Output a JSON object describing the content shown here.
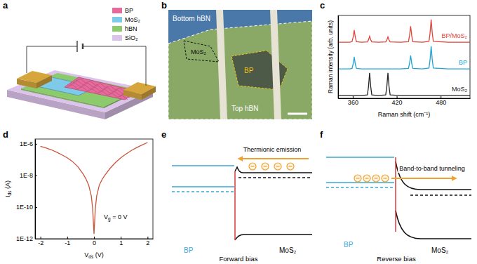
{
  "chart_data": [
    {
      "type": "line",
      "letter": "c",
      "x_label": "Raman shift (cm⁻¹)",
      "y_label": "Raman intensity (arb. units)",
      "x": [
        340,
        356,
        359,
        360.5,
        362,
        363.5,
        365,
        372,
        380,
        381.5,
        383,
        384.5,
        386,
        395,
        405,
        406.5,
        408,
        409.5,
        411,
        425,
        436,
        437.5,
        439,
        440.5,
        442,
        455,
        464,
        465.5,
        467,
        468.5,
        470,
        490,
        520
      ],
      "series": [
        {
          "name": "BP/MoS₂",
          "color": "#e0443a",
          "values": [
            2.1,
            2.1,
            2.12,
            2.28,
            2.55,
            2.28,
            2.12,
            2.1,
            2.11,
            2.19,
            2.32,
            2.19,
            2.11,
            2.1,
            2.11,
            2.18,
            2.3,
            2.18,
            2.11,
            2.1,
            2.12,
            2.34,
            2.7,
            2.34,
            2.12,
            2.1,
            2.13,
            2.44,
            2.95,
            2.44,
            2.13,
            2.1,
            2.1
          ]
        },
        {
          "name": "BP",
          "color": "#1fa3d6",
          "values": [
            1.1,
            1.1,
            1.12,
            1.28,
            1.55,
            1.28,
            1.12,
            1.1,
            1.1,
            1.1,
            1.1,
            1.1,
            1.1,
            1.1,
            1.1,
            1.1,
            1.1,
            1.1,
            1.1,
            1.1,
            1.12,
            1.3,
            1.6,
            1.3,
            1.12,
            1.1,
            1.13,
            1.44,
            1.95,
            1.44,
            1.13,
            1.1,
            1.1
          ]
        },
        {
          "name": "MoS₂",
          "color": "#222222",
          "values": [
            0.1,
            0.1,
            0.1,
            0.1,
            0.1,
            0.1,
            0.1,
            0.1,
            0.13,
            0.44,
            0.95,
            0.44,
            0.13,
            0.1,
            0.13,
            0.44,
            0.95,
            0.44,
            0.13,
            0.1,
            0.1,
            0.1,
            0.1,
            0.1,
            0.1,
            0.1,
            0.1,
            0.1,
            0.1,
            0.1,
            0.1,
            0.1,
            0.1
          ]
        }
      ],
      "xlim": [
        340,
        520
      ],
      "ylim": [
        0,
        3.1
      ],
      "xticks": [
        360,
        420,
        480
      ],
      "tick_labels": "x"
    },
    {
      "type": "line",
      "letter": "d",
      "log": "y",
      "x_label": "Vds (V)",
      "y_label": "Ids (A)",
      "annotation": "Vg = 0 V",
      "x": [
        -2,
        -1.8,
        -1.6,
        -1.4,
        -1.2,
        -1,
        -0.8,
        -0.6,
        -0.4,
        -0.3,
        -0.2,
        -0.1,
        -0.05,
        0,
        0.05,
        0.1,
        0.2,
        0.3,
        0.4,
        0.6,
        0.8,
        1,
        1.2,
        1.4,
        1.6,
        1.8,
        2
      ],
      "series": [
        {
          "color": "#c8553d",
          "values": [
            7e-07,
            5.5e-07,
            4.2e-07,
            3e-07,
            2e-07,
            1.3e-07,
            7.5e-08,
            3.5e-08,
            1.2e-08,
            6e-09,
            2.5e-09,
            5e-10,
            8e-11,
            2e-12,
            8e-11,
            5e-10,
            2.5e-09,
            5.5e-09,
            1e-08,
            2.8e-08,
            6.5e-08,
            1.3e-07,
            2.3e-07,
            3.8e-07,
            5.8e-07,
            8.5e-07,
            1.2e-06
          ]
        }
      ],
      "xlim": [
        -2.2,
        2.2
      ],
      "ylim": [
        1e-12,
        2e-06
      ],
      "xticks": [
        -2,
        -1,
        0,
        1,
        2
      ],
      "yticks": [
        {
          "value": 1e-12,
          "label": "1E-12"
        },
        {
          "value": 1e-10,
          "label": "1E-10"
        },
        {
          "value": 1e-08,
          "label": "1E-8"
        },
        {
          "value": 1e-06,
          "label": "1E-6"
        }
      ]
    }
  ],
  "diagrams": {
    "a": {
      "letter": "a",
      "legend": [
        {
          "label": "BP",
          "color": "#e8699b"
        },
        {
          "label": "MoS₂",
          "color": "#7ecbe9"
        },
        {
          "label": "hBN",
          "color": "#8ccb6b"
        },
        {
          "label": "SiO₂",
          "color": "#dcc3ea"
        }
      ]
    },
    "b": {
      "letter": "b",
      "labels": {
        "bottom": "Bottom hBN",
        "mos2": "MoS₂",
        "bp": "BP",
        "top": "Top hBN"
      }
    },
    "e": {
      "letter": "e",
      "arrow_label": "Thermionic emission",
      "left": "BP",
      "right": "MoS₂",
      "caption": "Forward bias"
    },
    "f": {
      "letter": "f",
      "arrow_label": "Band-to-band tunneling",
      "left": "BP",
      "right": "MoS₂",
      "caption": "Reverse bias"
    }
  }
}
